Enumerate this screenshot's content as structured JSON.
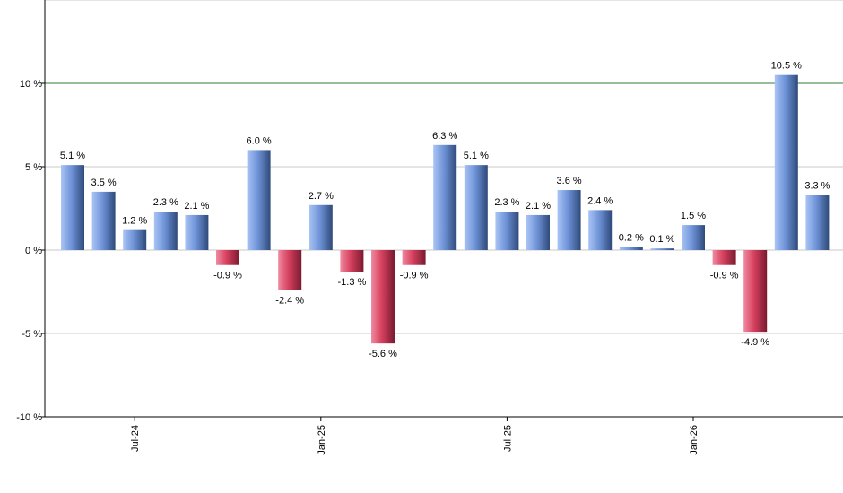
{
  "chart_data": {
    "type": "bar",
    "title": "",
    "xlabel": "",
    "ylabel": "",
    "ylim": [
      -10,
      15
    ],
    "y_ticks": [
      {
        "value": -10,
        "label": "-10 %"
      },
      {
        "value": -5,
        "label": "-5 %"
      },
      {
        "value": 0,
        "label": "0 %"
      },
      {
        "value": 5,
        "label": "5 %"
      },
      {
        "value": 10,
        "label": "10 %"
      }
    ],
    "reference_line": {
      "value": 10,
      "color": "#2e7d32"
    },
    "grid": true,
    "legend": "none",
    "x_tick_labels": [
      {
        "index": 2,
        "label": "Jul-24"
      },
      {
        "index": 8,
        "label": "Jan-25"
      },
      {
        "index": 14,
        "label": "Jul-25"
      },
      {
        "index": 20,
        "label": "Jan-26"
      }
    ],
    "values": [
      5.1,
      3.5,
      1.2,
      2.3,
      2.1,
      -0.9,
      6.0,
      -2.4,
      2.7,
      -1.3,
      -5.6,
      -0.9,
      6.3,
      5.1,
      2.3,
      2.1,
      3.6,
      2.4,
      0.2,
      0.1,
      1.5,
      -0.9,
      -4.9,
      10.5,
      3.3
    ],
    "data_labels": [
      "5.1 %",
      "3.5 %",
      "1.2 %",
      "2.3 %",
      "2.1 %",
      "-0.9 %",
      "6.0 %",
      "-2.4 %",
      "2.7 %",
      "-1.3 %",
      "-5.6 %",
      "-0.9 %",
      "6.3 %",
      "5.1 %",
      "2.3 %",
      "2.1 %",
      "3.6 %",
      "2.4 %",
      "0.2 %",
      "0.1 %",
      "1.5 %",
      "-0.9 %",
      "-4.9 %",
      "10.5 %",
      "3.3 %"
    ],
    "colors": {
      "positive_light": "#a9c4f5",
      "positive_mid": "#6f93d8",
      "positive_dark": "#2e4a7a",
      "negative_light": "#f08aa0",
      "negative_mid": "#d5405e",
      "negative_dark": "#7a1a30",
      "grid": "#c8c8c8",
      "axis": "#000000"
    }
  }
}
